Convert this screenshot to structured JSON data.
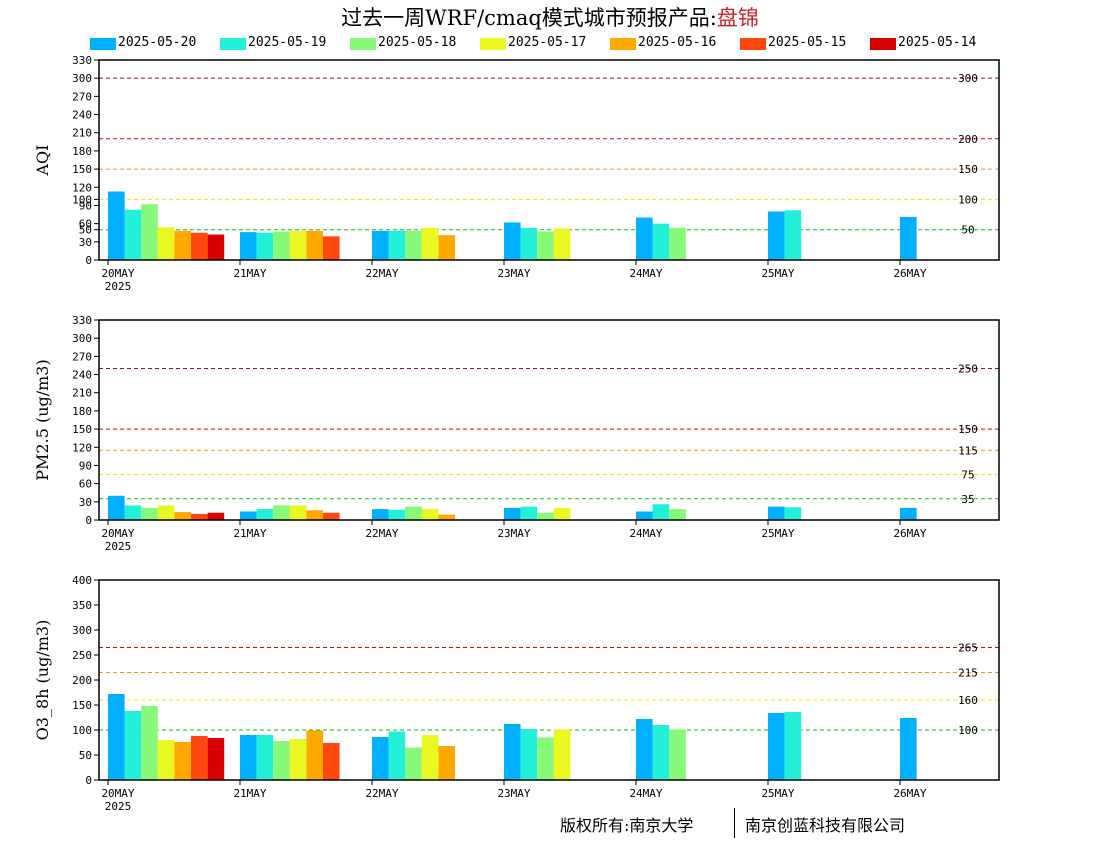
{
  "header": {
    "title_prefix": "过去一周WRF/cmaq模式城市预报产品:",
    "city": "盘锦",
    "city_color": "#cc2222"
  },
  "legend": [
    {
      "label": "2025-05-20",
      "color": "#00b0ff"
    },
    {
      "label": "2025-05-19",
      "color": "#22f0d8"
    },
    {
      "label": "2025-05-18",
      "color": "#88f878"
    },
    {
      "label": "2025-05-17",
      "color": "#e8f820"
    },
    {
      "label": "2025-05-16",
      "color": "#ffa800"
    },
    {
      "label": "2025-05-15",
      "color": "#ff4810"
    },
    {
      "label": "2025-05-14",
      "color": "#d80000"
    }
  ],
  "footer": {
    "left": "版权所有:南京大学",
    "right": "南京创蓝科技有限公司"
  },
  "chart_data": [
    {
      "type": "bar",
      "ylabel": "AQI",
      "ylim": [
        0,
        330
      ],
      "yticks": [
        0,
        30,
        50,
        60,
        90,
        100,
        120,
        150,
        180,
        210,
        240,
        270,
        300,
        330
      ],
      "categories": [
        "20MAY",
        "21MAY",
        "22MAY",
        "23MAY",
        "24MAY",
        "25MAY",
        "26MAY"
      ],
      "first_category_year": "2025",
      "thresholds": [
        {
          "value": 50,
          "label": "50",
          "color": "#00c000"
        },
        {
          "value": 100,
          "label": "100",
          "color": "#ffe000"
        },
        {
          "value": 150,
          "label": "150",
          "color": "#ff9000"
        },
        {
          "value": 200,
          "label": "200",
          "color": "#e00000"
        },
        {
          "value": 300,
          "label": "300",
          "color": "#a00040"
        }
      ],
      "series": [
        {
          "name": "2025-05-20",
          "values": [
            113,
            46,
            48,
            62,
            70,
            80,
            71
          ]
        },
        {
          "name": "2025-05-19",
          "values": [
            83,
            45,
            48,
            53,
            60,
            82,
            null
          ]
        },
        {
          "name": "2025-05-18",
          "values": [
            92,
            47,
            48,
            47,
            53,
            null,
            null
          ]
        },
        {
          "name": "2025-05-17",
          "values": [
            54,
            48,
            53,
            52,
            null,
            null,
            null
          ]
        },
        {
          "name": "2025-05-16",
          "values": [
            48,
            48,
            41,
            null,
            null,
            null,
            null
          ]
        },
        {
          "name": "2025-05-15",
          "values": [
            45,
            39,
            null,
            null,
            null,
            null,
            null
          ]
        },
        {
          "name": "2025-05-14",
          "values": [
            42,
            null,
            null,
            null,
            null,
            null,
            null
          ]
        }
      ]
    },
    {
      "type": "bar",
      "ylabel": "PM2.5 (ug/m3)",
      "ylim": [
        0,
        330
      ],
      "yticks": [
        0,
        30,
        60,
        90,
        120,
        150,
        180,
        210,
        240,
        270,
        300,
        330
      ],
      "categories": [
        "20MAY",
        "21MAY",
        "22MAY",
        "23MAY",
        "24MAY",
        "25MAY",
        "26MAY"
      ],
      "first_category_year": "2025",
      "thresholds": [
        {
          "value": 35,
          "label": "35",
          "color": "#00c000"
        },
        {
          "value": 75,
          "label": "75",
          "color": "#ffe000"
        },
        {
          "value": 115,
          "label": "115",
          "color": "#ff9000"
        },
        {
          "value": 150,
          "label": "150",
          "color": "#e00000"
        },
        {
          "value": 250,
          "label": "250",
          "color": "#a00040"
        }
      ],
      "series": [
        {
          "name": "2025-05-20",
          "values": [
            40,
            14,
            18,
            20,
            14,
            22,
            20
          ]
        },
        {
          "name": "2025-05-19",
          "values": [
            24,
            18,
            17,
            22,
            26,
            21,
            null
          ]
        },
        {
          "name": "2025-05-18",
          "values": [
            20,
            24,
            22,
            12,
            18,
            null,
            null
          ]
        },
        {
          "name": "2025-05-17",
          "values": [
            24,
            24,
            18,
            20,
            null,
            null,
            null
          ]
        },
        {
          "name": "2025-05-16",
          "values": [
            13,
            16,
            9,
            null,
            null,
            null,
            null
          ]
        },
        {
          "name": "2025-05-15",
          "values": [
            10,
            12,
            null,
            null,
            null,
            null,
            null
          ]
        },
        {
          "name": "2025-05-14",
          "values": [
            12,
            null,
            null,
            null,
            null,
            null,
            null
          ]
        }
      ]
    },
    {
      "type": "bar",
      "ylabel": "O3_8h (ug/m3)",
      "ylim": [
        0,
        400
      ],
      "yticks": [
        0,
        50,
        100,
        150,
        200,
        250,
        300,
        350,
        400
      ],
      "categories": [
        "20MAY",
        "21MAY",
        "22MAY",
        "23MAY",
        "24MAY",
        "25MAY",
        "26MAY"
      ],
      "first_category_year": "2025",
      "thresholds": [
        {
          "value": 100,
          "label": "100",
          "color": "#00c000"
        },
        {
          "value": 160,
          "label": "160",
          "color": "#ffe000"
        },
        {
          "value": 215,
          "label": "215",
          "color": "#ff9000"
        },
        {
          "value": 265,
          "label": "265",
          "color": "#e00000"
        }
      ],
      "series": [
        {
          "name": "2025-05-20",
          "values": [
            172,
            90,
            86,
            112,
            122,
            134,
            124
          ]
        },
        {
          "name": "2025-05-19",
          "values": [
            138,
            90,
            97,
            102,
            110,
            136,
            null
          ]
        },
        {
          "name": "2025-05-18",
          "values": [
            148,
            78,
            65,
            85,
            101,
            null,
            null
          ]
        },
        {
          "name": "2025-05-17",
          "values": [
            80,
            82,
            90,
            101,
            null,
            null,
            null
          ]
        },
        {
          "name": "2025-05-16",
          "values": [
            76,
            99,
            68,
            null,
            null,
            null,
            null
          ]
        },
        {
          "name": "2025-05-15",
          "values": [
            88,
            74,
            null,
            null,
            null,
            null,
            null
          ]
        },
        {
          "name": "2025-05-14",
          "values": [
            84,
            null,
            null,
            null,
            null,
            null,
            null
          ]
        }
      ]
    }
  ]
}
